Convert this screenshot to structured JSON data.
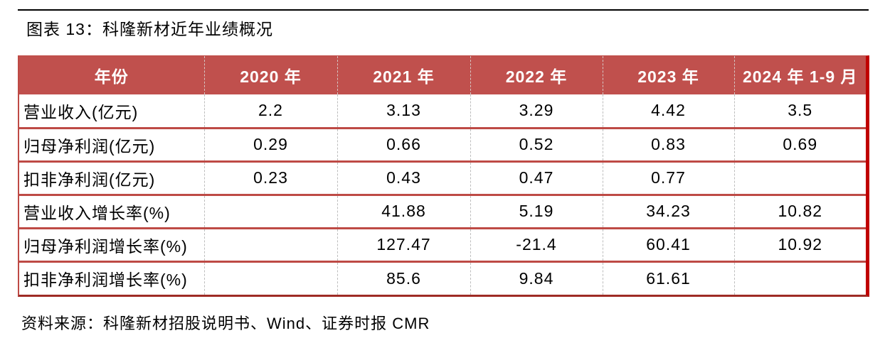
{
  "page": {
    "title": "图表 13：科隆新材近年业绩概况",
    "source": "资料来源：科隆新材招股说明书、Wind、证券时报 CMR"
  },
  "colors": {
    "header_bg": "#C0504D",
    "header_text": "#FFFFFF",
    "row_divider": "#BE4A45",
    "frame_right": "#C00000",
    "frame_bottom": "#9E2B25",
    "column_divider": "#BDBDBD",
    "top_rule": "#000000",
    "body_text": "#000000"
  },
  "table": {
    "columns": [
      "年份",
      "2020 年",
      "2021 年",
      "2022 年",
      "2023 年",
      "2024 年 1-9 月"
    ],
    "rows": [
      {
        "label": "营业收入(亿元)",
        "values": [
          "2.2",
          "3.13",
          "3.29",
          "4.42",
          "3.5"
        ]
      },
      {
        "label": "归母净利润(亿元)",
        "values": [
          "0.29",
          "0.66",
          "0.52",
          "0.83",
          "0.69"
        ]
      },
      {
        "label": "扣非净利润(亿元)",
        "values": [
          "0.23",
          "0.43",
          "0.47",
          "0.77",
          ""
        ]
      },
      {
        "label": "营业收入增长率(%)",
        "values": [
          "",
          "41.88",
          "5.19",
          "34.23",
          "10.82"
        ]
      },
      {
        "label": "归母净利润增长率(%)",
        "values": [
          "",
          "127.47",
          "-21.4",
          "60.41",
          "10.92"
        ]
      },
      {
        "label": "扣非净利润增长率(%)",
        "values": [
          "",
          "85.6",
          "9.84",
          "61.61",
          ""
        ]
      }
    ]
  },
  "chart_data": {
    "type": "table",
    "title": "图表 13：科隆新材近年业绩概况",
    "categories": [
      "2020 年",
      "2021 年",
      "2022 年",
      "2023 年",
      "2024 年 1-9 月"
    ],
    "series": [
      {
        "name": "营业收入(亿元)",
        "values": [
          2.2,
          3.13,
          3.29,
          4.42,
          3.5
        ]
      },
      {
        "name": "归母净利润(亿元)",
        "values": [
          0.29,
          0.66,
          0.52,
          0.83,
          0.69
        ]
      },
      {
        "name": "扣非净利润(亿元)",
        "values": [
          0.23,
          0.43,
          0.47,
          0.77,
          null
        ]
      },
      {
        "name": "营业收入增长率(%)",
        "values": [
          null,
          41.88,
          5.19,
          34.23,
          10.82
        ]
      },
      {
        "name": "归母净利润增长率(%)",
        "values": [
          null,
          127.47,
          -21.4,
          60.41,
          10.92
        ]
      },
      {
        "name": "扣非净利润增长率(%)",
        "values": [
          null,
          85.6,
          9.84,
          61.61,
          null
        ]
      }
    ],
    "source": "资料来源：科隆新材招股说明书、Wind、证券时报 CMR"
  }
}
